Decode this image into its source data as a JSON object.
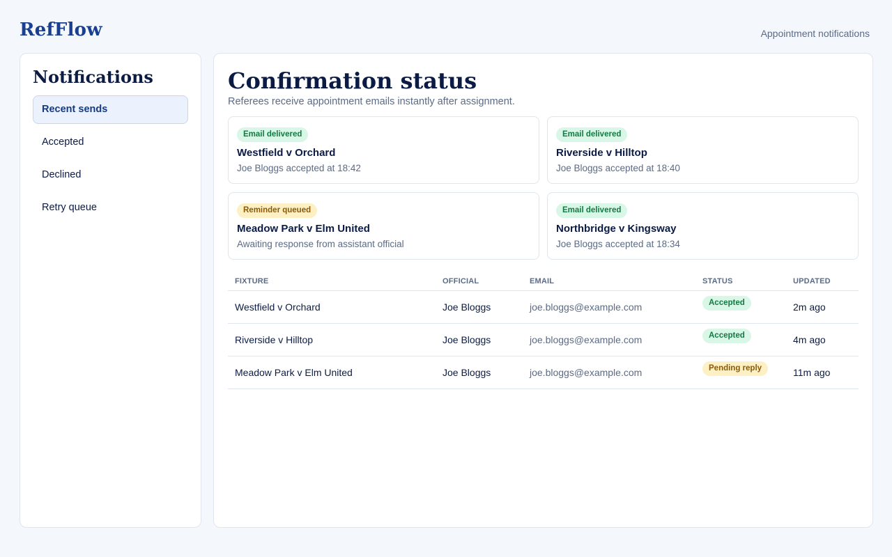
{
  "app": {
    "brand": "RefFlow",
    "section": "Appointment notifications"
  },
  "sidebar": {
    "title": "Notifications",
    "items": [
      {
        "label": "Recent sends",
        "active": true
      },
      {
        "label": "Accepted"
      },
      {
        "label": "Declined"
      },
      {
        "label": "Retry queue"
      }
    ]
  },
  "main": {
    "title": "Confirmation status",
    "subtitle": "Referees receive appointment emails instantly after assignment.",
    "cards": [
      {
        "status": "Email delivered",
        "tone": "green",
        "fixture": "Westfield v Orchard",
        "detail": "Joe Bloggs accepted at 18:42"
      },
      {
        "status": "Email delivered",
        "tone": "green",
        "fixture": "Riverside v Hilltop",
        "detail": "Joe Bloggs accepted at 18:40"
      },
      {
        "status": "Reminder queued",
        "tone": "amber",
        "fixture": "Meadow Park v Elm United",
        "detail": "Awaiting response from assistant official"
      },
      {
        "status": "Email delivered",
        "tone": "green",
        "fixture": "Northbridge v Kingsway",
        "detail": "Joe Bloggs accepted at 18:34"
      }
    ],
    "table": {
      "headers": [
        "FIXTURE",
        "OFFICIAL",
        "EMAIL",
        "STATUS",
        "UPDATED"
      ],
      "rows": [
        {
          "fixture": "Westfield v Orchard",
          "official": "Joe Bloggs",
          "email": "joe.bloggs@example.com",
          "status": "Accepted",
          "updated": "2m ago"
        },
        {
          "fixture": "Riverside v Hilltop",
          "official": "Joe Bloggs",
          "email": "joe.bloggs@example.com",
          "status": "Accepted",
          "updated": "4m ago"
        },
        {
          "fixture": "Meadow Park v Elm United",
          "official": "Joe Bloggs",
          "email": "joe.bloggs@example.com",
          "status": "Pending reply",
          "updated": "11m ago"
        }
      ]
    }
  },
  "colors": {
    "brand": "#1a3f8f",
    "success_bg": "#d9f7e6",
    "success_fg": "#137a43",
    "warning_bg": "#fdf0c4",
    "warning_fg": "#8a5a09",
    "active_nav_bg": "#ebf2fe"
  }
}
